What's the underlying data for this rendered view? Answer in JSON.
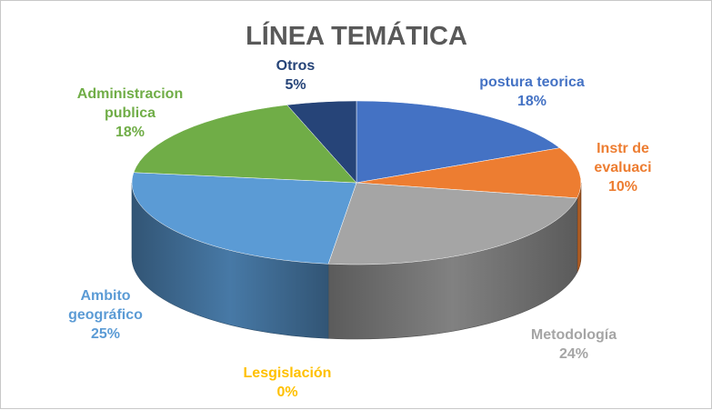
{
  "chart_data": {
    "type": "pie",
    "title": "LÍNEA TEMÁTICA",
    "slices": [
      {
        "label": "postura teorica",
        "value": 18,
        "percent": "18%",
        "color": "#4472C4",
        "label_lines": [
          "postura teorica"
        ]
      },
      {
        "label": "Instr de evaluaci",
        "value": 10,
        "percent": "10%",
        "color": "#ED7D31",
        "label_lines": [
          "Instr de",
          "evaluaci"
        ]
      },
      {
        "label": "Metodología",
        "value": 24,
        "percent": "24%",
        "color": "#A5A5A5",
        "label_lines": [
          "Metodología"
        ]
      },
      {
        "label": "Lesgislación",
        "value": 0,
        "percent": "0%",
        "color": "#FFC000",
        "label_lines": [
          "Lesgislación"
        ]
      },
      {
        "label": "Ambito geográfico",
        "value": 25,
        "percent": "25%",
        "color": "#5B9BD5",
        "label_lines": [
          "Ambito",
          "geográfico"
        ]
      },
      {
        "label": "Administracion publica",
        "value": 18,
        "percent": "18%",
        "color": "#70AD47",
        "label_lines": [
          "Administracion",
          "publica"
        ]
      },
      {
        "label": "Otros",
        "value": 5,
        "percent": "5%",
        "color": "#264478",
        "label_lines": [
          "Otros"
        ]
      }
    ]
  }
}
